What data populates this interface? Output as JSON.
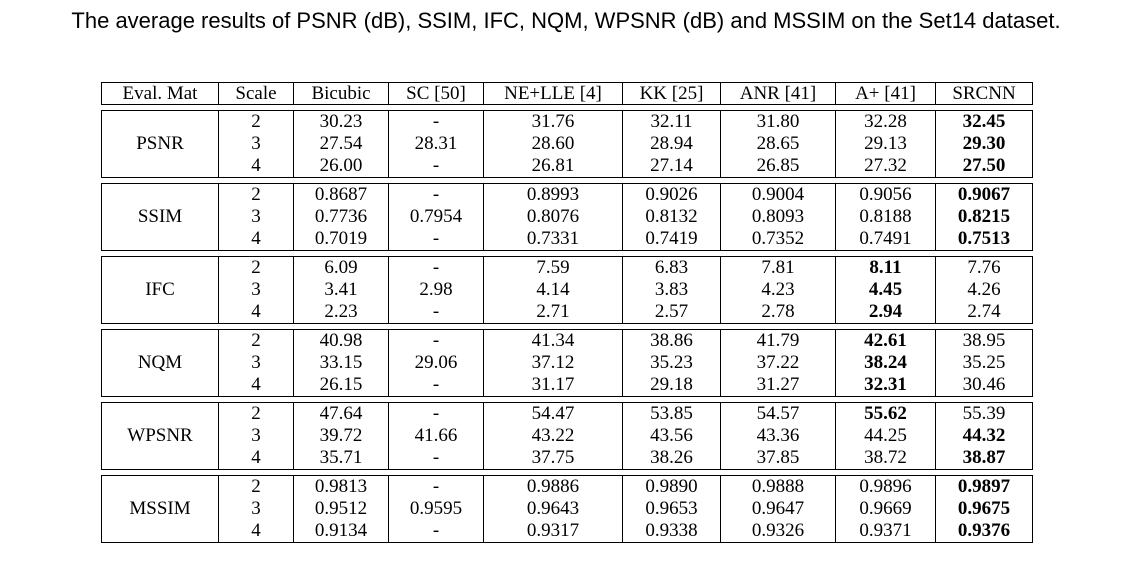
{
  "caption": "The average results of PSNR (dB), SSIM, IFC, NQM, WPSNR (dB) and MSSIM on the Set14 dataset.",
  "chart_data": {
    "type": "table",
    "columns": [
      "Eval. Mat",
      "Scale",
      "Bicubic",
      "SC [50]",
      "NE+LLE [4]",
      "KK [25]",
      "ANR [41]",
      "A+ [41]",
      "SRCNN"
    ],
    "groups": [
      {
        "metric": "PSNR",
        "rows": [
          {
            "scale": "2",
            "values": [
              "30.23",
              "-",
              "31.76",
              "32.11",
              "31.80",
              "32.28",
              "32.45"
            ],
            "best": [
              6
            ]
          },
          {
            "scale": "3",
            "values": [
              "27.54",
              "28.31",
              "28.60",
              "28.94",
              "28.65",
              "29.13",
              "29.30"
            ],
            "best": [
              6
            ]
          },
          {
            "scale": "4",
            "values": [
              "26.00",
              "-",
              "26.81",
              "27.14",
              "26.85",
              "27.32",
              "27.50"
            ],
            "best": [
              6
            ]
          }
        ]
      },
      {
        "metric": "SSIM",
        "rows": [
          {
            "scale": "2",
            "values": [
              "0.8687",
              "-",
              "0.8993",
              "0.9026",
              "0.9004",
              "0.9056",
              "0.9067"
            ],
            "best": [
              6
            ]
          },
          {
            "scale": "3",
            "values": [
              "0.7736",
              "0.7954",
              "0.8076",
              "0.8132",
              "0.8093",
              "0.8188",
              "0.8215"
            ],
            "best": [
              6
            ]
          },
          {
            "scale": "4",
            "values": [
              "0.7019",
              "-",
              "0.7331",
              "0.7419",
              "0.7352",
              "0.7491",
              "0.7513"
            ],
            "best": [
              6
            ]
          }
        ]
      },
      {
        "metric": "IFC",
        "rows": [
          {
            "scale": "2",
            "values": [
              "6.09",
              "-",
              "7.59",
              "6.83",
              "7.81",
              "8.11",
              "7.76"
            ],
            "best": [
              5
            ]
          },
          {
            "scale": "3",
            "values": [
              "3.41",
              "2.98",
              "4.14",
              "3.83",
              "4.23",
              "4.45",
              "4.26"
            ],
            "best": [
              5
            ]
          },
          {
            "scale": "4",
            "values": [
              "2.23",
              "-",
              "2.71",
              "2.57",
              "2.78",
              "2.94",
              "2.74"
            ],
            "best": [
              5
            ]
          }
        ]
      },
      {
        "metric": "NQM",
        "rows": [
          {
            "scale": "2",
            "values": [
              "40.98",
              "-",
              "41.34",
              "38.86",
              "41.79",
              "42.61",
              "38.95"
            ],
            "best": [
              5
            ]
          },
          {
            "scale": "3",
            "values": [
              "33.15",
              "29.06",
              "37.12",
              "35.23",
              "37.22",
              "38.24",
              "35.25"
            ],
            "best": [
              5
            ]
          },
          {
            "scale": "4",
            "values": [
              "26.15",
              "-",
              "31.17",
              "29.18",
              "31.27",
              "32.31",
              "30.46"
            ],
            "best": [
              5
            ]
          }
        ]
      },
      {
        "metric": "WPSNR",
        "rows": [
          {
            "scale": "2",
            "values": [
              "47.64",
              "-",
              "54.47",
              "53.85",
              "54.57",
              "55.62",
              "55.39"
            ],
            "best": [
              5
            ]
          },
          {
            "scale": "3",
            "values": [
              "39.72",
              "41.66",
              "43.22",
              "43.56",
              "43.36",
              "44.25",
              "44.32"
            ],
            "best": [
              6
            ]
          },
          {
            "scale": "4",
            "values": [
              "35.71",
              "-",
              "37.75",
              "38.26",
              "37.85",
              "38.72",
              "38.87"
            ],
            "best": [
              6
            ]
          }
        ]
      },
      {
        "metric": "MSSIM",
        "rows": [
          {
            "scale": "2",
            "values": [
              "0.9813",
              "-",
              "0.9886",
              "0.9890",
              "0.9888",
              "0.9896",
              "0.9897"
            ],
            "best": [
              6
            ]
          },
          {
            "scale": "3",
            "values": [
              "0.9512",
              "0.9595",
              "0.9643",
              "0.9653",
              "0.9647",
              "0.9669",
              "0.9675"
            ],
            "best": [
              6
            ]
          },
          {
            "scale": "4",
            "values": [
              "0.9134",
              "-",
              "0.9317",
              "0.9338",
              "0.9326",
              "0.9371",
              "0.9376"
            ],
            "best": [
              6
            ]
          }
        ]
      }
    ]
  }
}
